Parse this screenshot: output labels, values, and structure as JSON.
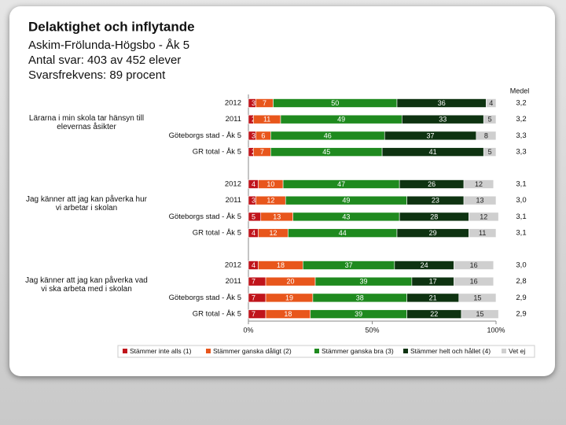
{
  "chart_data": {
    "type": "bar",
    "orientation": "horizontal",
    "stacked": true,
    "title": "Delaktighet och inflytande",
    "subtitle": [
      "Askim-Frölunda-Högsbo - Åk 5",
      "Antal svar: 403 av 452 elever",
      "Svarsfrekvens: 89 procent"
    ],
    "group_labels": [
      "Lärarna i min skola tar hänsyn till elevernas åsikter",
      "Jag känner att jag kan påverka hur vi arbetar i skolan",
      "Jag känner att jag kan påverka vad vi ska arbeta med i skolan"
    ],
    "categories": [
      "2012",
      "2011",
      "Göteborgs stad - Åk 5",
      "GR total - Åk 5",
      "2012",
      "2011",
      "Göteborgs stad - Åk 5",
      "GR total - Åk 5",
      "2012",
      "2011",
      "Göteborgs stad - Åk 5",
      "GR total - Åk 5"
    ],
    "series": [
      {
        "name": "Stämmer inte alls (1)",
        "color": "#c0141b",
        "values": [
          3,
          2,
          3,
          2,
          4,
          3,
          5,
          4,
          4,
          7,
          7,
          7
        ]
      },
      {
        "name": "Stämmer ganska dåligt (2)",
        "color": "#e8561c",
        "values": [
          7,
          11,
          6,
          7,
          10,
          12,
          13,
          12,
          18,
          20,
          19,
          18
        ]
      },
      {
        "name": "Stämmer ganska bra (3)",
        "color": "#1f8a1f",
        "values": [
          50,
          49,
          46,
          45,
          47,
          49,
          43,
          44,
          37,
          39,
          38,
          39
        ]
      },
      {
        "name": "Stämmer helt och hållet (4)",
        "color": "#0e3311",
        "values": [
          36,
          33,
          37,
          41,
          26,
          23,
          28,
          29,
          24,
          17,
          21,
          22
        ]
      },
      {
        "name": "Vet ej",
        "color": "#cfcfcf",
        "values": [
          4,
          5,
          8,
          5,
          12,
          13,
          12,
          11,
          16,
          16,
          15,
          15
        ]
      }
    ],
    "mean": {
      "name": "Medel",
      "values": [
        3.2,
        3.2,
        3.3,
        3.3,
        3.1,
        3.0,
        3.1,
        3.1,
        3.0,
        2.8,
        2.9,
        2.9
      ],
      "value_labels": [
        "3,2",
        "3,2",
        "3,3",
        "3,3",
        "3,1",
        "3,0",
        "3,1",
        "3,1",
        "3,0",
        "2,8",
        "2,9",
        "2,9"
      ]
    },
    "xlim": [
      0,
      100
    ],
    "xticks": [
      {
        "value": 0,
        "label": "0%"
      },
      {
        "value": 50,
        "label": "50%"
      },
      {
        "value": 100,
        "label": "100%"
      }
    ]
  }
}
